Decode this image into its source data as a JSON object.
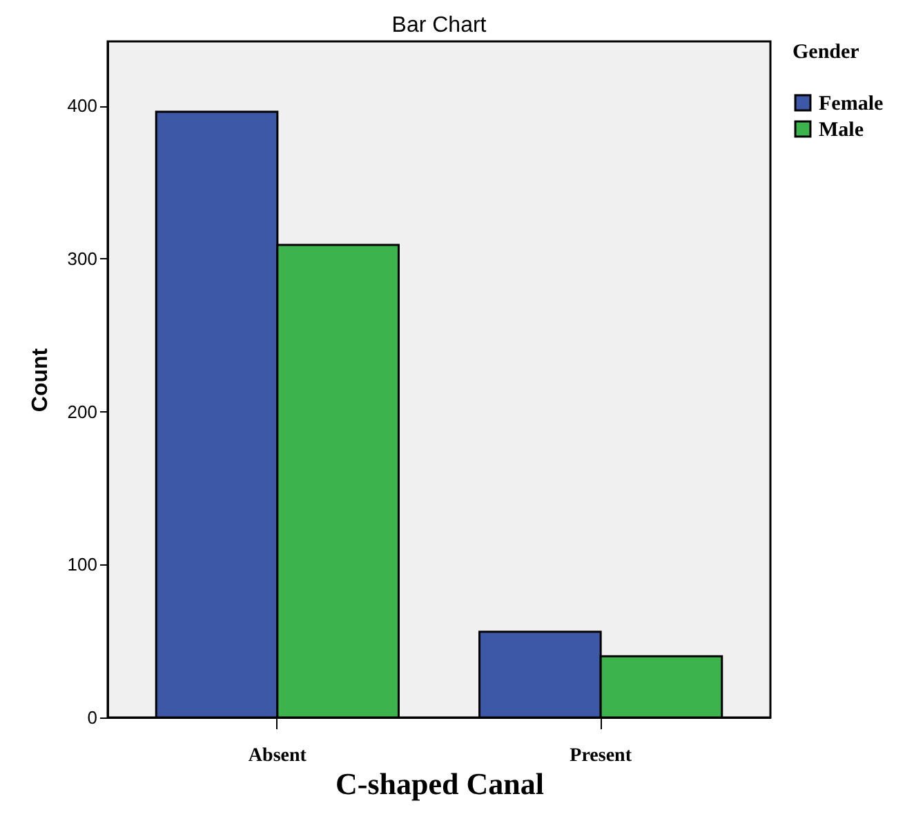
{
  "chart_data": {
    "type": "bar",
    "title": "Bar Chart",
    "xlabel": "C-shaped Canal",
    "ylabel": "Count",
    "legend_title": "Gender",
    "categories": [
      "Absent",
      "Present"
    ],
    "series": [
      {
        "name": "Female",
        "color": "#3e58a8",
        "values": [
          396,
          56
        ]
      },
      {
        "name": "Male",
        "color": "#3cb44b",
        "values": [
          309,
          40
        ]
      }
    ],
    "ylim": [
      0,
      442
    ],
    "yticks": [
      0,
      100,
      200,
      300,
      400
    ],
    "grid": false,
    "legend": "right"
  }
}
